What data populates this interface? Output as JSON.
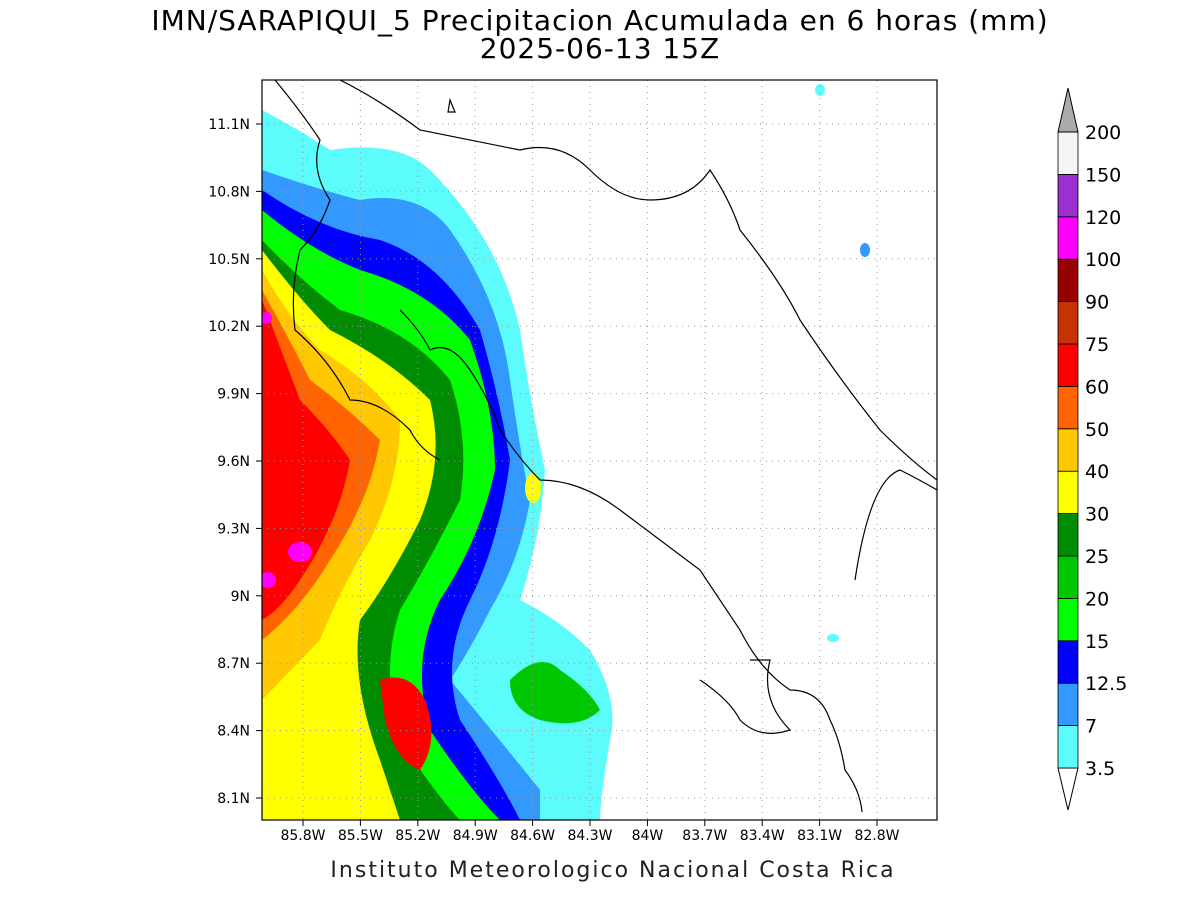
{
  "header": {
    "title": "IMN/SARAPIQUI_5 Precipitacion Acumulada en 6 horas (mm)",
    "subtitle": "2025-06-13 15Z"
  },
  "map": {
    "lat_labels": [
      "11.1N",
      "10.8N",
      "10.5N",
      "10.2N",
      "9.9N",
      "9.6N",
      "9.3N",
      "9N",
      "8.7N",
      "8.4N",
      "8.1N"
    ],
    "lon_labels": [
      "85.8W",
      "85.5W",
      "85.2W",
      "84.9W",
      "84.6W",
      "84.3W",
      "84W",
      "83.7W",
      "83.4W",
      "83.1W",
      "82.8W"
    ]
  },
  "legend": {
    "levels": [
      3.5,
      7,
      12.5,
      15,
      20,
      25,
      30,
      40,
      50,
      60,
      75,
      90,
      100,
      120,
      150,
      200
    ],
    "colors": [
      "#ffffff",
      "#5cfcfc",
      "#3399ff",
      "#0000ff",
      "#00ff00",
      "#00c800",
      "#008c00",
      "#ffff00",
      "#ffc800",
      "#ff6400",
      "#ff0000",
      "#c83200",
      "#960000",
      "#ff00ff",
      "#9b30d0",
      "#f5f5f5",
      "#aaaaaa"
    ]
  },
  "footer": "Instituto Meteorologico Nacional Costa Rica"
}
